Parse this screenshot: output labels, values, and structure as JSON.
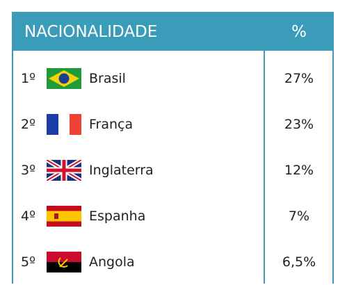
{
  "header": {
    "columns": [
      "NACIONALIDADE",
      "%"
    ]
  },
  "table": {
    "rows": [
      [
        "1º",
        "Brasil",
        "27%"
      ],
      [
        "2º",
        "França",
        "23%"
      ],
      [
        "3º",
        "Inglaterra",
        "12%"
      ],
      [
        "4º",
        "Espanha",
        "7%"
      ],
      [
        "5º",
        "Angola",
        "6,5%"
      ]
    ]
  }
}
